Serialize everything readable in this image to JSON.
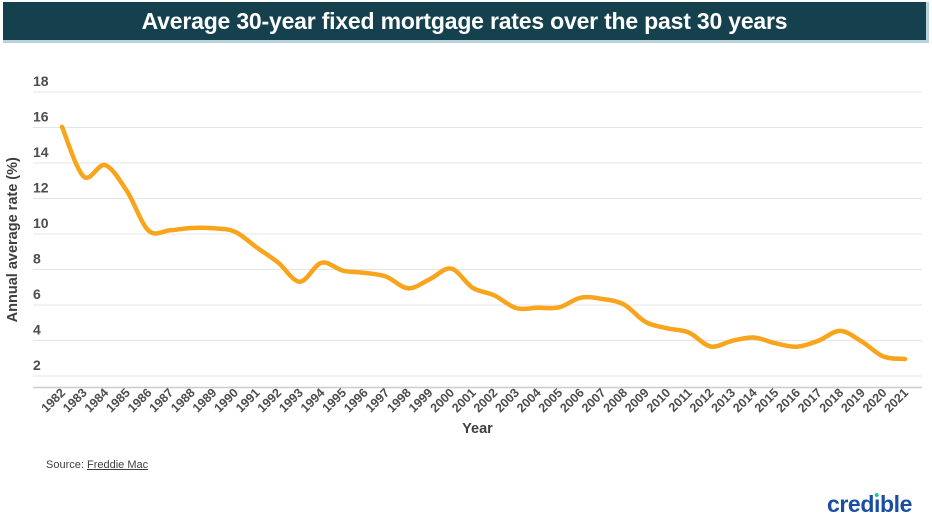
{
  "title": "Average 30-year fixed mortgage rates over the past 30 years",
  "source": {
    "prefix": "Source: ",
    "link_label": "Freddie Mac"
  },
  "logo": {
    "part1": "cred",
    "i_char": "ı",
    "part2": "ble"
  },
  "colors": {
    "title_bar_bg": "#14414D",
    "title_bar_border": "#B9D3DA",
    "line": "#F8A41D",
    "gridline": "#E4E4E4",
    "axis_line": "#CCCCCC",
    "tick_text": "#4D4D4D",
    "logo_blue": "#1B4EA3",
    "logo_green": "#25C694"
  },
  "chart_data": {
    "type": "line",
    "title": "Average 30-year fixed mortgage rates over the past 30 years",
    "xlabel": "Year",
    "ylabel": "Annual average rate (%)",
    "x": [
      1982,
      1983,
      1984,
      1985,
      1986,
      1987,
      1988,
      1989,
      1990,
      1991,
      1992,
      1993,
      1994,
      1995,
      1996,
      1997,
      1998,
      1999,
      2000,
      2001,
      2002,
      2003,
      2004,
      2005,
      2006,
      2007,
      2008,
      2009,
      2010,
      2011,
      2012,
      2013,
      2014,
      2015,
      2016,
      2017,
      2018,
      2019,
      2020,
      2021
    ],
    "values": [
      16.04,
      13.24,
      13.88,
      12.43,
      10.19,
      10.21,
      10.34,
      10.32,
      10.13,
      9.25,
      8.39,
      7.31,
      8.38,
      7.93,
      7.81,
      7.6,
      6.94,
      7.44,
      8.05,
      6.97,
      6.54,
      5.83,
      5.84,
      5.87,
      6.41,
      6.34,
      6.03,
      5.04,
      4.69,
      4.45,
      3.66,
      3.98,
      4.17,
      3.85,
      3.65,
      3.99,
      4.54,
      3.94,
      3.1,
      2.96
    ],
    "ylim": [
      2,
      18
    ],
    "yticks": [
      18,
      16,
      14,
      12,
      10,
      8,
      6,
      4,
      2
    ],
    "grid": true,
    "legend": "none",
    "line_color": "#F8A41D"
  }
}
